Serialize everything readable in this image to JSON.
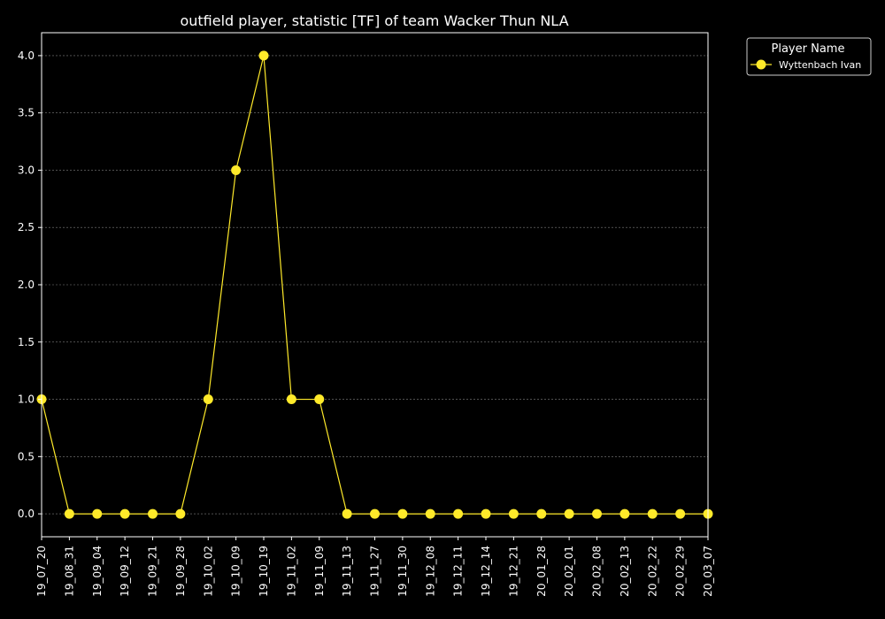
{
  "chart_data": {
    "type": "line",
    "title": "outfield player, statistic [TF] of team Wacker Thun NLA",
    "xlabel": "",
    "ylabel": "",
    "categories": [
      "19_07_20",
      "19_08_31",
      "19_09_04",
      "19_09_12",
      "19_09_21",
      "19_09_28",
      "19_10_02",
      "19_10_09",
      "19_10_19",
      "19_11_02",
      "19_11_09",
      "19_11_13",
      "19_11_27",
      "19_11_30",
      "19_12_08",
      "19_12_11",
      "19_12_14",
      "19_12_21",
      "20_01_28",
      "20_02_01",
      "20_02_08",
      "20_02_13",
      "20_02_22",
      "20_02_29",
      "20_03_07"
    ],
    "series": [
      {
        "name": "Wyttenbach Ivan",
        "color": "#ffea2a",
        "values": [
          1,
          0,
          0,
          0,
          0,
          0,
          1,
          3,
          4,
          1,
          1,
          0,
          0,
          0,
          0,
          0,
          0,
          0,
          0,
          0,
          0,
          0,
          0,
          0,
          0
        ]
      }
    ],
    "ylim": [
      -0.2,
      4.2
    ],
    "yticks": [
      0.0,
      0.5,
      1.0,
      1.5,
      2.0,
      2.5,
      3.0,
      3.5,
      4.0
    ],
    "ytick_labels": [
      "0.0",
      "0.5",
      "1.0",
      "1.5",
      "2.0",
      "2.5",
      "3.0",
      "3.5",
      "4.0"
    ],
    "grid": true,
    "legend": {
      "title": "Player Name",
      "placement": "outside-top-right"
    }
  },
  "colors": {
    "background": "#000000",
    "foreground": "#ffffff",
    "grid": "#808080",
    "series": "#ffea2a"
  }
}
